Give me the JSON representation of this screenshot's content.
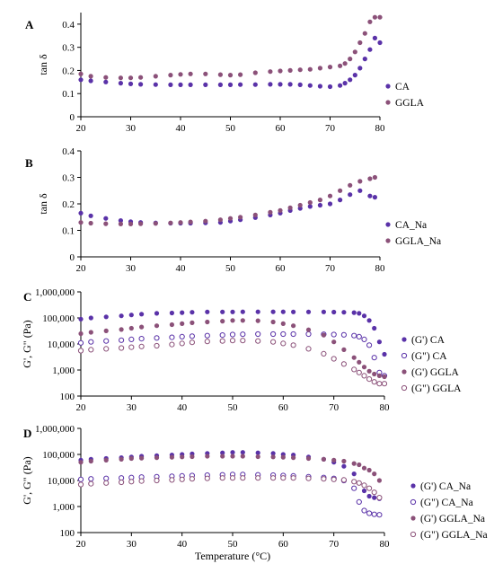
{
  "colors": {
    "CA": "#5a32a8",
    "GGLA": "#8b5179"
  },
  "chart_data": [
    {
      "panel": "A",
      "type": "scatter",
      "ylabel": "tan δ",
      "xlim": [
        20,
        80
      ],
      "ylim": [
        0,
        0.45
      ],
      "xticks": [
        "20",
        "30",
        "40",
        "50",
        "60",
        "70",
        "80"
      ],
      "yticks": [
        "0",
        "0.1",
        "0.2",
        "0.3",
        "0.4"
      ],
      "grid": false,
      "legend": "right",
      "series": [
        {
          "name": "CA",
          "color": "#5a32a8",
          "marker": "filled",
          "x": [
            20,
            22,
            25,
            28,
            30,
            32,
            35,
            38,
            40,
            42,
            45,
            48,
            50,
            52,
            55,
            58,
            60,
            62,
            64,
            66,
            68,
            70,
            72,
            73,
            74,
            75,
            76,
            77,
            78,
            79,
            80
          ],
          "y": [
            0.16,
            0.155,
            0.15,
            0.145,
            0.142,
            0.14,
            0.139,
            0.138,
            0.138,
            0.138,
            0.138,
            0.138,
            0.138,
            0.139,
            0.139,
            0.14,
            0.14,
            0.14,
            0.138,
            0.135,
            0.132,
            0.13,
            0.135,
            0.145,
            0.16,
            0.18,
            0.21,
            0.25,
            0.29,
            0.34,
            0.32
          ]
        },
        {
          "name": "GGLA",
          "color": "#8b5179",
          "marker": "filled",
          "x": [
            20,
            22,
            25,
            28,
            30,
            32,
            35,
            38,
            40,
            42,
            45,
            48,
            50,
            52,
            55,
            58,
            60,
            62,
            64,
            66,
            68,
            70,
            72,
            73,
            74,
            75,
            76,
            77,
            78,
            79,
            80
          ],
          "y": [
            0.185,
            0.175,
            0.17,
            0.168,
            0.168,
            0.17,
            0.175,
            0.18,
            0.183,
            0.185,
            0.185,
            0.182,
            0.18,
            0.182,
            0.19,
            0.195,
            0.198,
            0.2,
            0.203,
            0.205,
            0.21,
            0.215,
            0.22,
            0.23,
            0.25,
            0.28,
            0.32,
            0.36,
            0.41,
            0.43,
            0.43
          ]
        }
      ]
    },
    {
      "panel": "B",
      "type": "scatter",
      "ylabel": "tan δ",
      "xlim": [
        20,
        80
      ],
      "ylim": [
        0,
        0.4
      ],
      "xticks": [
        "20",
        "30",
        "40",
        "50",
        "60",
        "70",
        "80"
      ],
      "yticks": [
        "0",
        "0.1",
        "0.2",
        "0.3",
        "0.4"
      ],
      "grid": false,
      "legend": "right",
      "series": [
        {
          "name": "CA_Na",
          "color": "#5a32a8",
          "marker": "filled",
          "x": [
            20,
            22,
            25,
            28,
            30,
            32,
            35,
            38,
            40,
            42,
            45,
            48,
            50,
            52,
            55,
            58,
            60,
            62,
            64,
            66,
            68,
            70,
            72,
            74,
            76,
            78,
            79
          ],
          "y": [
            0.165,
            0.155,
            0.145,
            0.137,
            0.133,
            0.13,
            0.128,
            0.127,
            0.127,
            0.127,
            0.128,
            0.13,
            0.135,
            0.14,
            0.148,
            0.158,
            0.165,
            0.175,
            0.183,
            0.19,
            0.195,
            0.2,
            0.215,
            0.235,
            0.25,
            0.23,
            0.225
          ]
        },
        {
          "name": "GGLA_Na",
          "color": "#8b5179",
          "marker": "filled",
          "x": [
            20,
            22,
            25,
            28,
            30,
            32,
            35,
            38,
            40,
            42,
            45,
            48,
            50,
            52,
            55,
            58,
            60,
            62,
            64,
            66,
            68,
            70,
            72,
            74,
            76,
            78,
            79
          ],
          "y": [
            0.13,
            0.127,
            0.125,
            0.124,
            0.124,
            0.125,
            0.126,
            0.128,
            0.13,
            0.132,
            0.135,
            0.14,
            0.145,
            0.15,
            0.158,
            0.168,
            0.175,
            0.185,
            0.195,
            0.205,
            0.215,
            0.23,
            0.25,
            0.27,
            0.285,
            0.295,
            0.3
          ]
        }
      ]
    },
    {
      "panel": "C",
      "type": "scatter",
      "yscale": "log",
      "ylabel": "G', G\" (Pa)",
      "xlim": [
        20,
        80
      ],
      "ylim": [
        100,
        1000000
      ],
      "xticks": [
        "20",
        "30",
        "40",
        "50",
        "60",
        "70",
        "80"
      ],
      "yticks": [
        "100",
        "1,000",
        "10,000",
        "100,000",
        "1,000,000"
      ],
      "grid": false,
      "legend": "right",
      "series": [
        {
          "name": "(G') CA",
          "color": "#5a32a8",
          "marker": "filled",
          "x": [
            20,
            22,
            25,
            28,
            30,
            32,
            35,
            38,
            40,
            42,
            45,
            48,
            50,
            52,
            55,
            58,
            60,
            62,
            65,
            68,
            70,
            72,
            74,
            75,
            76,
            77,
            78,
            79,
            80
          ],
          "y": [
            90000,
            100000,
            110000,
            120000,
            130000,
            140000,
            150000,
            155000,
            160000,
            165000,
            170000,
            170000,
            170000,
            172000,
            172000,
            172000,
            172000,
            170000,
            170000,
            170000,
            168000,
            165000,
            160000,
            150000,
            120000,
            80000,
            40000,
            12000,
            4000
          ]
        },
        {
          "name": "(G\") CA",
          "color": "#5a32a8",
          "marker": "open",
          "x": [
            20,
            22,
            25,
            28,
            30,
            32,
            35,
            38,
            40,
            42,
            45,
            48,
            50,
            52,
            55,
            58,
            60,
            62,
            65,
            68,
            70,
            72,
            74,
            75,
            76,
            77,
            78,
            79,
            80
          ],
          "y": [
            11000,
            12000,
            13000,
            14000,
            15000,
            16000,
            17000,
            18000,
            19000,
            20000,
            21000,
            22000,
            23000,
            23500,
            24000,
            24000,
            24000,
            24000,
            24000,
            23500,
            23000,
            22500,
            21000,
            19000,
            15000,
            9000,
            3000,
            800,
            600
          ]
        },
        {
          "name": "(G') GGLA",
          "color": "#8b5179",
          "marker": "filled",
          "x": [
            20,
            22,
            25,
            28,
            30,
            32,
            35,
            38,
            40,
            42,
            45,
            48,
            50,
            52,
            55,
            58,
            60,
            62,
            65,
            68,
            70,
            72,
            74,
            75,
            76,
            77,
            78,
            79,
            80
          ],
          "y": [
            25000,
            28000,
            32000,
            36000,
            40000,
            45000,
            50000,
            55000,
            60000,
            65000,
            70000,
            75000,
            80000,
            80000,
            78000,
            70000,
            60000,
            50000,
            35000,
            22000,
            12000,
            6000,
            3000,
            2000,
            1300,
            900,
            700,
            600,
            550
          ]
        },
        {
          "name": "(G\") GGLA",
          "color": "#8b5179",
          "marker": "open",
          "x": [
            20,
            22,
            25,
            28,
            30,
            32,
            35,
            38,
            40,
            42,
            45,
            48,
            50,
            52,
            55,
            58,
            60,
            62,
            65,
            68,
            70,
            72,
            74,
            75,
            76,
            77,
            78,
            79,
            80
          ],
          "y": [
            5500,
            6000,
            6500,
            7000,
            7500,
            8000,
            8500,
            9500,
            10500,
            11500,
            12500,
            13000,
            13500,
            13500,
            13000,
            12000,
            10500,
            9000,
            6500,
            4200,
            2700,
            1700,
            1050,
            800,
            600,
            450,
            350,
            300,
            300
          ]
        }
      ]
    },
    {
      "panel": "D",
      "type": "scatter",
      "yscale": "log",
      "ylabel": "G', G\" (Pa)",
      "xlabel": "Temperature (°C)",
      "xlim": [
        20,
        80
      ],
      "ylim": [
        100,
        1000000
      ],
      "xticks": [
        "20",
        "30",
        "40",
        "50",
        "60",
        "70",
        "80"
      ],
      "yticks": [
        "100",
        "1,000",
        "10,000",
        "100,000",
        "1,000,000"
      ],
      "grid": false,
      "legend": "right",
      "series": [
        {
          "name": "(G') CA_Na",
          "color": "#5a32a8",
          "marker": "filled",
          "x": [
            20,
            22,
            25,
            28,
            30,
            32,
            35,
            38,
            40,
            42,
            45,
            48,
            50,
            52,
            55,
            58,
            60,
            62,
            65,
            68,
            70,
            72,
            74,
            75,
            76,
            77,
            78,
            79
          ],
          "y": [
            60000,
            65000,
            70000,
            75000,
            80000,
            85000,
            90000,
            95000,
            100000,
            105000,
            110000,
            115000,
            120000,
            120000,
            115000,
            110000,
            100000,
            95000,
            80000,
            65000,
            50000,
            35000,
            18000,
            8000,
            4000,
            2500,
            2200,
            2000
          ]
        },
        {
          "name": "(G\") CA_Na",
          "color": "#5a32a8",
          "marker": "open",
          "x": [
            20,
            22,
            25,
            28,
            30,
            32,
            35,
            38,
            40,
            42,
            45,
            48,
            50,
            52,
            55,
            58,
            60,
            62,
            65,
            68,
            70,
            72,
            74,
            75,
            76,
            77,
            78,
            79
          ],
          "y": [
            11000,
            11500,
            12000,
            12500,
            13000,
            13500,
            14000,
            14500,
            15000,
            15500,
            16000,
            16500,
            17000,
            17000,
            16500,
            16000,
            15500,
            15000,
            14000,
            13000,
            12000,
            10000,
            5000,
            1500,
            700,
            550,
            500,
            480
          ]
        },
        {
          "name": "(G') GGLA_Na",
          "color": "#8b5179",
          "marker": "filled",
          "x": [
            20,
            22,
            25,
            28,
            30,
            32,
            35,
            38,
            40,
            42,
            45,
            48,
            50,
            52,
            55,
            58,
            60,
            62,
            65,
            68,
            70,
            72,
            74,
            75,
            76,
            77,
            78,
            79
          ],
          "y": [
            50000,
            55000,
            60000,
            65000,
            70000,
            72000,
            75000,
            78000,
            80000,
            82000,
            85000,
            85000,
            85000,
            85000,
            82000,
            80000,
            78000,
            75000,
            70000,
            65000,
            60000,
            55000,
            45000,
            40000,
            30000,
            25000,
            18000,
            10000
          ]
        },
        {
          "name": "(G\") GGLA_Na",
          "color": "#8b5179",
          "marker": "open",
          "x": [
            20,
            22,
            25,
            28,
            30,
            32,
            35,
            38,
            40,
            42,
            45,
            48,
            50,
            52,
            55,
            58,
            60,
            62,
            65,
            68,
            70,
            72,
            74,
            75,
            76,
            77,
            78,
            79
          ],
          "y": [
            7000,
            7500,
            8000,
            8500,
            9000,
            9500,
            10000,
            10500,
            11000,
            11500,
            12000,
            12500,
            12500,
            12500,
            12500,
            12500,
            12500,
            12500,
            12000,
            11500,
            11000,
            10500,
            9000,
            8000,
            6500,
            5000,
            3500,
            2200
          ]
        }
      ]
    }
  ]
}
